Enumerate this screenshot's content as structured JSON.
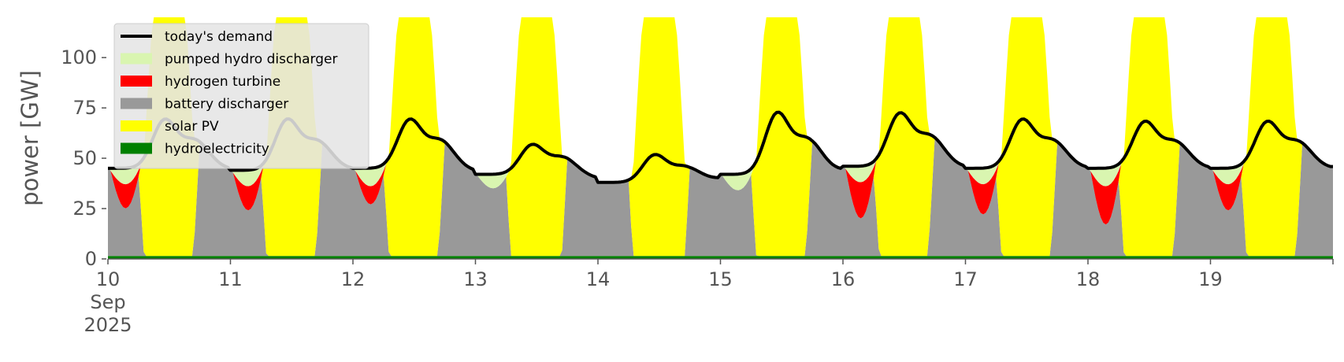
{
  "chart_data": {
    "type": "area",
    "ylabel": "power [GW]",
    "ylim": [
      0,
      120
    ],
    "yticks": [
      0,
      25,
      50,
      75,
      100
    ],
    "xlim": [
      "2025-09-10",
      "2025-09-20"
    ],
    "xticks": [
      {
        "label": "10",
        "sub1": "Sep",
        "sub2": "2025"
      },
      {
        "label": "11"
      },
      {
        "label": "12"
      },
      {
        "label": "13"
      },
      {
        "label": "14"
      },
      {
        "label": "15"
      },
      {
        "label": "16"
      },
      {
        "label": "17"
      },
      {
        "label": "18"
      },
      {
        "label": "19"
      }
    ],
    "grid": false,
    "legend_position": "upper-left",
    "stack_order": [
      "hydroelectricity",
      "battery discharger",
      "solar PV",
      "hydrogen turbine",
      "pumped hydro discharger"
    ],
    "series": [
      {
        "name": "today's demand",
        "kind": "line",
        "color": "#000000"
      },
      {
        "name": "pumped hydro discharger",
        "kind": "area",
        "color": "#d9f5b0"
      },
      {
        "name": "hydrogen turbine",
        "kind": "area",
        "color": "#ff0000"
      },
      {
        "name": "battery discharger",
        "kind": "area",
        "color": "#999999"
      },
      {
        "name": "solar PV",
        "kind": "area",
        "color": "#ffff00"
      },
      {
        "name": "hydroelectricity",
        "kind": "area",
        "color": "#008000"
      }
    ],
    "days": [
      {
        "date": "2025-09-10",
        "night_demand": 45,
        "peak_demand": 68,
        "h2_min": 25,
        "pump": 8
      },
      {
        "date": "2025-09-11",
        "night_demand": 44,
        "peak_demand": 68,
        "h2_min": 24,
        "pump": 8
      },
      {
        "date": "2025-09-12",
        "night_demand": 45,
        "peak_demand": 68,
        "h2_min": 27,
        "pump": 9
      },
      {
        "date": "2025-09-13",
        "night_demand": 42,
        "peak_demand": 56,
        "h2_min": 35,
        "pump": 7
      },
      {
        "date": "2025-09-14",
        "night_demand": 38,
        "peak_demand": 51,
        "h2_min": 38,
        "pump": 0
      },
      {
        "date": "2025-09-15",
        "night_demand": 42,
        "peak_demand": 71,
        "h2_min": 34,
        "pump": 8
      },
      {
        "date": "2025-09-16",
        "night_demand": 46,
        "peak_demand": 71,
        "h2_min": 20,
        "pump": 8
      },
      {
        "date": "2025-09-17",
        "night_demand": 45,
        "peak_demand": 68,
        "h2_min": 22,
        "pump": 8
      },
      {
        "date": "2025-09-18",
        "night_demand": 45,
        "peak_demand": 67,
        "h2_min": 17,
        "pump": 9
      },
      {
        "date": "2025-09-19",
        "night_demand": 45,
        "peak_demand": 67,
        "h2_min": 24,
        "pump": 8
      }
    ],
    "solar_peak": 120,
    "hydro_level": 1.5
  }
}
